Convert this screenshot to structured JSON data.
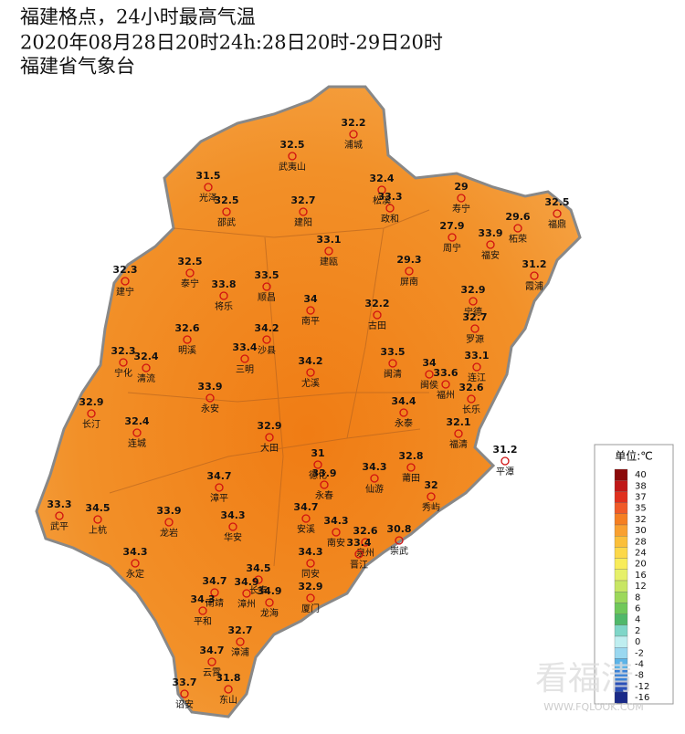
{
  "header": {
    "title": "福建格点，24小时最高气温",
    "subtitle": "2020年08月28日20时24h:28日20时-29日20时",
    "source": "福建省气象台"
  },
  "stations": [
    {
      "value": 32.2,
      "name": "浦城"
    },
    {
      "value": 32.5,
      "name": "武夷山"
    },
    {
      "value": 31.5,
      "name": "光泽"
    },
    {
      "value": 32.4,
      "name": "松溪"
    },
    {
      "value": 33.3,
      "name": "政和"
    },
    {
      "value": 29,
      "name": "寿宁"
    },
    {
      "value": 32.5,
      "name": "福鼎"
    },
    {
      "value": 32.5,
      "name": "邵武"
    },
    {
      "value": 32.7,
      "name": "建阳"
    },
    {
      "value": 27.9,
      "name": "周宁"
    },
    {
      "value": 33.9,
      "name": "福安"
    },
    {
      "value": 29.6,
      "name": "柘荣"
    },
    {
      "value": 33.1,
      "name": "建瓯"
    },
    {
      "value": 31.2,
      "name": "霞浦"
    },
    {
      "value": 29.3,
      "name": "屏南"
    },
    {
      "value": 32.3,
      "name": "建宁"
    },
    {
      "value": 32.5,
      "name": "泰宁"
    },
    {
      "value": 33.8,
      "name": "将乐"
    },
    {
      "value": 33.5,
      "name": "顺昌"
    },
    {
      "value": 34,
      "name": "南平"
    },
    {
      "value": 32.2,
      "name": "古田"
    },
    {
      "value": 32.9,
      "name": "宁德"
    },
    {
      "value": 32.7,
      "name": "罗源"
    },
    {
      "value": 32.6,
      "name": "明溪"
    },
    {
      "value": 34.2,
      "name": "沙县"
    },
    {
      "value": 33.4,
      "name": "三明"
    },
    {
      "value": 32.3,
      "name": "宁化"
    },
    {
      "value": 32.4,
      "name": "清流"
    },
    {
      "value": 33.5,
      "name": "闽清"
    },
    {
      "value": 33.1,
      "name": "连江"
    },
    {
      "value": 34,
      "name": "闽侯"
    },
    {
      "value": 33.6,
      "name": "福州"
    },
    {
      "value": 34.2,
      "name": "尤溪"
    },
    {
      "value": 32.6,
      "name": "长乐"
    },
    {
      "value": 33.9,
      "name": "永安"
    },
    {
      "value": 32.9,
      "name": "长汀"
    },
    {
      "value": 34.4,
      "name": "永泰"
    },
    {
      "value": 32.4,
      "name": "连城"
    },
    {
      "value": 32.1,
      "name": "福清"
    },
    {
      "value": 32.9,
      "name": "大田"
    },
    {
      "value": 31,
      "name": "德化"
    },
    {
      "value": 33.9,
      "name": "永春"
    },
    {
      "value": 31.2,
      "name": "平潭"
    },
    {
      "value": 32.8,
      "name": "莆田"
    },
    {
      "value": 34.3,
      "name": "仙游"
    },
    {
      "value": 32,
      "name": "秀屿"
    },
    {
      "value": 34.7,
      "name": "漳平"
    },
    {
      "value": 33.3,
      "name": "武平"
    },
    {
      "value": 34.5,
      "name": "上杭"
    },
    {
      "value": 33.9,
      "name": "龙岩"
    },
    {
      "value": 34.3,
      "name": "华安"
    },
    {
      "value": 34.7,
      "name": "安溪"
    },
    {
      "value": 34.3,
      "name": "南安"
    },
    {
      "value": 32.6,
      "name": "泉州"
    },
    {
      "value": 30.8,
      "name": "崇武"
    },
    {
      "value": 33.4,
      "name": "晋江"
    },
    {
      "value": 34.3,
      "name": "永定"
    },
    {
      "value": 34.5,
      "name": "长泰"
    },
    {
      "value": 34.3,
      "name": "同安"
    },
    {
      "value": 34.7,
      "name": "南靖"
    },
    {
      "value": 34.9,
      "name": "漳州"
    },
    {
      "value": 34.9,
      "name": "龙海"
    },
    {
      "value": 32.9,
      "name": "厦门"
    },
    {
      "value": 34.3,
      "name": "平和"
    },
    {
      "value": 32.7,
      "name": "漳浦"
    },
    {
      "value": 34.7,
      "name": "云霄"
    },
    {
      "value": 31.8,
      "name": "东山"
    },
    {
      "value": 33.7,
      "name": "诏安"
    }
  ],
  "legend": {
    "title": "单位:℃",
    "ticks": [
      40,
      38,
      37,
      35,
      32,
      30,
      28,
      24,
      20,
      16,
      12,
      8,
      6,
      4,
      2,
      0,
      -2,
      -4,
      -8,
      -12,
      -16
    ],
    "colors": [
      "#8b0a0a",
      "#c01818",
      "#e0301e",
      "#f05a28",
      "#f57f22",
      "#f9a030",
      "#fbbf3a",
      "#fcd84a",
      "#f8ec5a",
      "#e6f06a",
      "#c8e664",
      "#9cd85a",
      "#70c85a",
      "#50b86a",
      "#7fd6c8",
      "#bfeef0",
      "#9ad8f0",
      "#5cb4e8",
      "#3a82d8",
      "#2a50b8",
      "#1a2a88"
    ]
  },
  "watermark": {
    "text": "看福清",
    "url": "WWW.FQLOOK.COM"
  }
}
